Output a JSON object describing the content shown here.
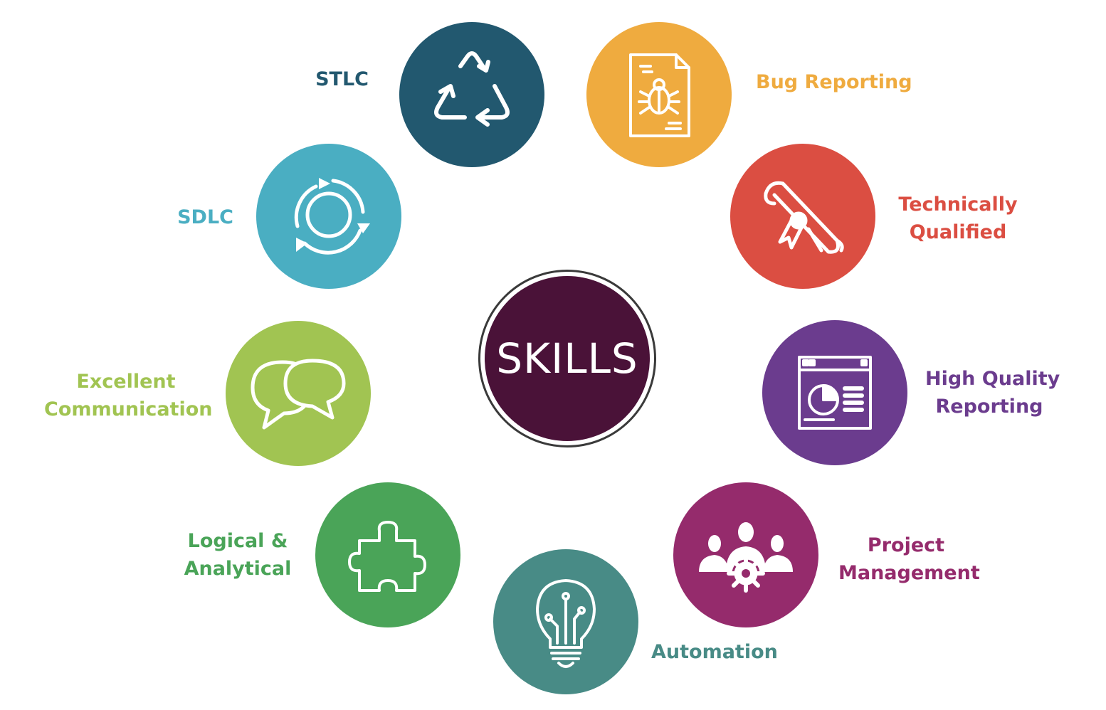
{
  "center": {
    "label": "SKILLS",
    "color": "#4a1238"
  },
  "skills": [
    {
      "id": "stlc",
      "lines": [
        "STLC"
      ],
      "color": "#22586f",
      "icon": "recycle-arrows-icon"
    },
    {
      "id": "bug",
      "lines": [
        "Bug Reporting"
      ],
      "color": "#efab3f",
      "icon": "bug-report-document-icon"
    },
    {
      "id": "tech",
      "lines": [
        "Technically",
        "Qualified"
      ],
      "color": "#db4e42",
      "icon": "diploma-scroll-icon"
    },
    {
      "id": "hqr",
      "lines": [
        "High Quality",
        "Reporting"
      ],
      "color": "#6b3c8e",
      "icon": "report-chart-window-icon"
    },
    {
      "id": "pm",
      "lines": [
        "Project",
        "Management"
      ],
      "color": "#952b6c",
      "icon": "team-gear-icon"
    },
    {
      "id": "auto",
      "lines": [
        "Automation"
      ],
      "color": "#488b86",
      "icon": "lightbulb-circuit-icon"
    },
    {
      "id": "logic",
      "lines": [
        "Logical &",
        "Analytical"
      ],
      "color": "#4aa458",
      "icon": "puzzle-piece-icon"
    },
    {
      "id": "comm",
      "lines": [
        "Excellent",
        "Communication"
      ],
      "color": "#a1c452",
      "icon": "speech-bubbles-icon"
    },
    {
      "id": "sdlc",
      "lines": [
        "SDLC"
      ],
      "color": "#4aaec2",
      "icon": "cycle-arrows-icon"
    }
  ]
}
